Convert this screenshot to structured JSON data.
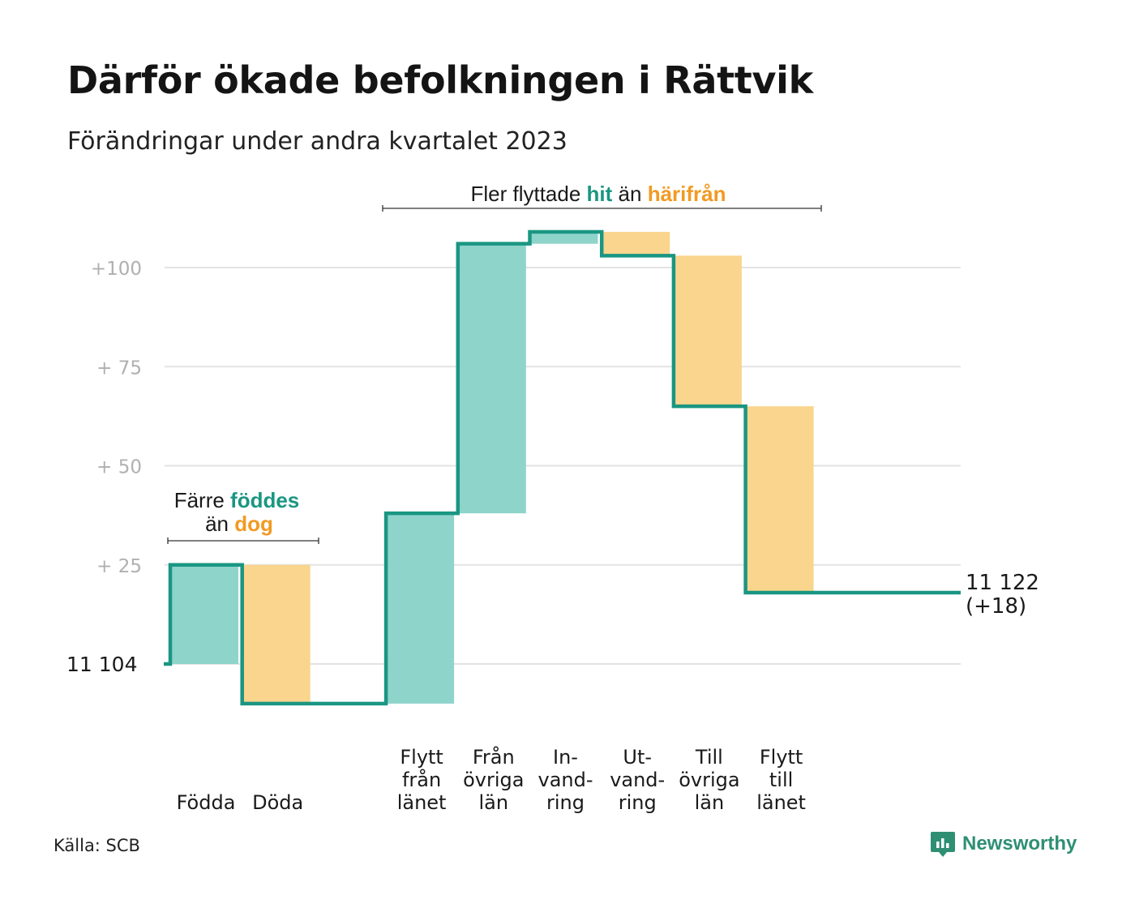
{
  "title": "Därför ökade befolkningen i Rättvik",
  "subtitle": "Förändringar under andra kvartalet 2023",
  "source": "Källa: SCB",
  "brand": {
    "name": "Newsworthy",
    "icon": "chart-speech-bubble-icon"
  },
  "colors": {
    "increase_fill": "#8ed4cb",
    "decrease_fill": "#f9d58d",
    "step_line": "#1a9682",
    "teal_text": "#1a9682",
    "orange_text": "#f29a22",
    "grid": "#e3e3e3",
    "tick_text": "#b0b0b0",
    "brand": "#2f8f73"
  },
  "annotations": {
    "births": {
      "line1_prefix": "Färre ",
      "line1_highlight": "föddes",
      "line2_prefix": "än ",
      "line2_highlight": "dog"
    },
    "migration": {
      "prefix": "Fler flyttade ",
      "highlight1": "hit",
      "middle": " än ",
      "highlight2": "härifrån"
    }
  },
  "chart_data": {
    "type": "waterfall",
    "start": {
      "label": "11  104",
      "value": 11104
    },
    "end": {
      "label": "11 122",
      "sublabel": "(+18)",
      "value": 11122
    },
    "y_ticks": [
      {
        "label": "+100",
        "value": 100
      },
      {
        "label": "+  75",
        "value": 75
      },
      {
        "label": "+  50",
        "value": 50
      },
      {
        "label": "+  25",
        "value": 25
      }
    ],
    "gridlines_offset": [
      0,
      25,
      50,
      75,
      100
    ],
    "ylim_offset": [
      -14,
      112
    ],
    "categories": [
      {
        "label": [
          "Födda"
        ],
        "change": 25
      },
      {
        "label": [
          "Döda"
        ],
        "change": -35
      },
      {
        "label": [],
        "change": 0
      },
      {
        "label": [
          "Flytt",
          "från",
          "länet"
        ],
        "change": 48
      },
      {
        "label": [
          "Från",
          "övriga",
          "län"
        ],
        "change": 68
      },
      {
        "label": [
          "In-",
          "vand-",
          "ring"
        ],
        "change": 3
      },
      {
        "label": [
          "Ut-",
          "vand-",
          "ring"
        ],
        "change": -6
      },
      {
        "label": [
          "Till",
          "övriga",
          "län"
        ],
        "change": -38
      },
      {
        "label": [
          "Flytt",
          "till",
          "länet"
        ],
        "change": -47
      }
    ]
  }
}
